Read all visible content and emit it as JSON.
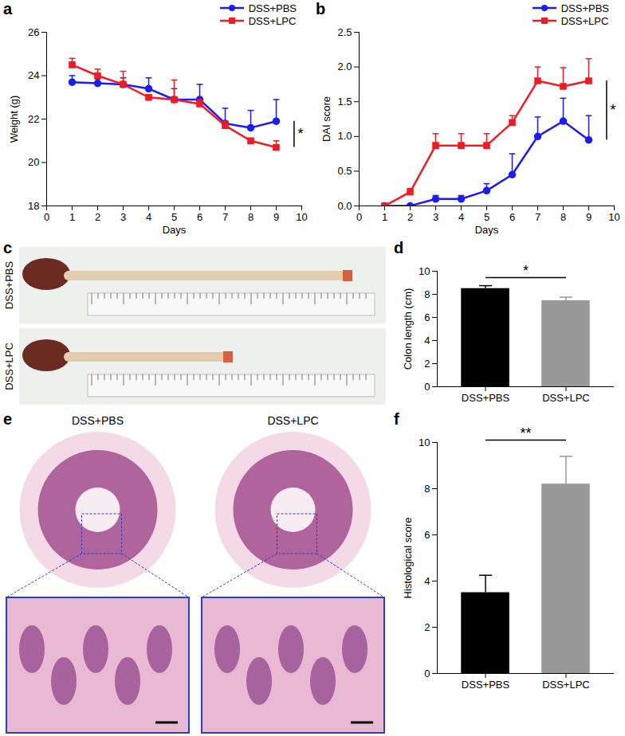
{
  "chart_data": [
    {
      "panel": "a",
      "type": "line",
      "xlabel": "Days",
      "ylabel": "Weight (g)",
      "x": [
        1,
        2,
        3,
        4,
        5,
        6,
        7,
        8,
        9
      ],
      "xlim": [
        0,
        10
      ],
      "xticks": [
        0,
        1,
        2,
        3,
        4,
        5,
        6,
        7,
        8,
        9,
        10
      ],
      "ylim": [
        18,
        26
      ],
      "yticks": [
        18,
        20,
        22,
        24,
        26
      ],
      "legend": "upper right",
      "annotations": [
        "*"
      ],
      "series": [
        {
          "name": "DSS+PBS",
          "color": "#1c1cf0",
          "marker": "circle",
          "values": [
            23.7,
            23.65,
            23.6,
            23.4,
            22.9,
            22.9,
            21.8,
            21.6,
            21.9
          ],
          "errors": [
            0.3,
            0.2,
            0.3,
            0.5,
            0.5,
            0.7,
            0.7,
            0.8,
            1.0
          ]
        },
        {
          "name": "DSS+LPC",
          "color": "#ee1c25",
          "marker": "square",
          "values": [
            24.5,
            24.0,
            23.6,
            23.0,
            22.9,
            22.7,
            21.7,
            21.0,
            20.7
          ],
          "errors": [
            0.3,
            0.3,
            0.6,
            0.1,
            0.9,
            0.2,
            0.2,
            0.1,
            0.3
          ]
        }
      ]
    },
    {
      "panel": "b",
      "type": "line",
      "xlabel": "Days",
      "ylabel": "DAI score",
      "x": [
        1,
        2,
        3,
        4,
        5,
        6,
        7,
        8,
        9
      ],
      "xlim": [
        0,
        10
      ],
      "xticks": [
        0,
        1,
        2,
        3,
        4,
        5,
        6,
        7,
        8,
        9,
        10
      ],
      "ylim": [
        0,
        2.5
      ],
      "yticks": [
        {
          "value": 0,
          "label": "0.0"
        },
        0.5,
        {
          "value": 1,
          "label": "1.0"
        },
        1.5,
        {
          "value": 2,
          "label": "2.0"
        },
        2.5
      ],
      "legend": "upper right",
      "annotations": [
        "*"
      ],
      "series": [
        {
          "name": "DSS+PBS",
          "color": "#1c1cf0",
          "marker": "circle",
          "values": [
            0,
            0,
            0.1,
            0.1,
            0.22,
            0.45,
            1.0,
            1.22,
            0.95
          ],
          "errors": [
            0,
            0,
            0.05,
            0.05,
            0.1,
            0.3,
            0.28,
            0.33,
            0.35
          ]
        },
        {
          "name": "DSS+LPC",
          "color": "#ee1c25",
          "marker": "square",
          "values": [
            0,
            0.2,
            0.87,
            0.87,
            0.87,
            1.2,
            1.8,
            1.72,
            1.8
          ],
          "errors": [
            0,
            0.05,
            0.17,
            0.17,
            0.17,
            0.1,
            0.2,
            0.27,
            0.32
          ]
        }
      ]
    },
    {
      "panel": "d",
      "type": "bar",
      "ylabel": "Colon length (cm)",
      "categories": [
        "DSS+PBS",
        "DSS+LPC"
      ],
      "values": [
        8.5,
        7.45
      ],
      "errors": [
        0.25,
        0.3
      ],
      "colors": [
        "#000000",
        "#999999"
      ],
      "ylim": [
        0,
        10
      ],
      "yticks": [
        0,
        2,
        4,
        6,
        8,
        10
      ],
      "annotations": [
        "*"
      ]
    },
    {
      "panel": "f",
      "type": "bar",
      "ylabel": "Histological score",
      "categories": [
        "DSS+PBS",
        "DSS+LPC"
      ],
      "values": [
        3.5,
        8.2
      ],
      "errors": [
        0.75,
        1.2
      ],
      "colors": [
        "#000000",
        "#999999"
      ],
      "ylim": [
        0,
        10
      ],
      "yticks": [
        0,
        2,
        4,
        6,
        8,
        10
      ],
      "annotations": [
        "**"
      ]
    }
  ],
  "images": [
    {
      "panel": "c",
      "labels": [
        "DSS+PBS",
        "DSS+LPC"
      ]
    },
    {
      "panel": "e",
      "labels": [
        "DSS+PBS",
        "DSS+LPC"
      ]
    }
  ]
}
